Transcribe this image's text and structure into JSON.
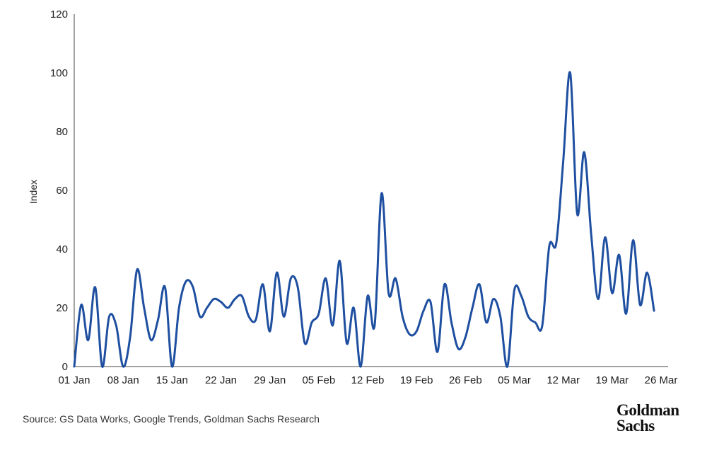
{
  "chart_data": {
    "type": "line",
    "title": "",
    "xlabel": "",
    "ylabel": "Index",
    "ylim": [
      0,
      120
    ],
    "yticks": [
      0,
      20,
      40,
      60,
      80,
      100,
      120
    ],
    "xticks": [
      "01 Jan",
      "08 Jan",
      "15 Jan",
      "22 Jan",
      "29 Jan",
      "05 Feb",
      "12 Feb",
      "19 Feb",
      "26 Feb",
      "05 Mar",
      "12 Mar",
      "19 Mar",
      "26 Mar"
    ],
    "line_color": "#1f4fa0",
    "series": [
      {
        "name": "",
        "points": [
          [
            "01 Jan",
            0
          ],
          [
            "02 Jan",
            21
          ],
          [
            "03 Jan",
            9
          ],
          [
            "04 Jan",
            27
          ],
          [
            "05 Jan",
            0
          ],
          [
            "06 Jan",
            17
          ],
          [
            "07 Jan",
            14
          ],
          [
            "08 Jan",
            0
          ],
          [
            "09 Jan",
            10
          ],
          [
            "10 Jan",
            33
          ],
          [
            "11 Jan",
            20
          ],
          [
            "12 Jan",
            9
          ],
          [
            "13 Jan",
            16
          ],
          [
            "14 Jan",
            27
          ],
          [
            "15 Jan",
            0
          ],
          [
            "16 Jan",
            20
          ],
          [
            "17 Jan",
            29
          ],
          [
            "18 Jan",
            27
          ],
          [
            "19 Jan",
            17
          ],
          [
            "20 Jan",
            20
          ],
          [
            "21 Jan",
            23
          ],
          [
            "22 Jan",
            22
          ],
          [
            "23 Jan",
            20
          ],
          [
            "24 Jan",
            23
          ],
          [
            "25 Jan",
            24
          ],
          [
            "26 Jan",
            17
          ],
          [
            "27 Jan",
            16
          ],
          [
            "28 Jan",
            28
          ],
          [
            "29 Jan",
            12
          ],
          [
            "30 Jan",
            32
          ],
          [
            "31 Jan",
            17
          ],
          [
            "01 Feb",
            30
          ],
          [
            "02 Feb",
            27
          ],
          [
            "03 Feb",
            8
          ],
          [
            "04 Feb",
            15
          ],
          [
            "05 Feb",
            18
          ],
          [
            "06 Feb",
            30
          ],
          [
            "07 Feb",
            14
          ],
          [
            "08 Feb",
            36
          ],
          [
            "09 Feb",
            8
          ],
          [
            "10 Feb",
            20
          ],
          [
            "11 Feb",
            0
          ],
          [
            "12 Feb",
            24
          ],
          [
            "13 Feb",
            14
          ],
          [
            "14 Feb",
            59
          ],
          [
            "15 Feb",
            25
          ],
          [
            "16 Feb",
            30
          ],
          [
            "17 Feb",
            17
          ],
          [
            "18 Feb",
            11
          ],
          [
            "19 Feb",
            12
          ],
          [
            "20 Feb",
            19
          ],
          [
            "21 Feb",
            22
          ],
          [
            "22 Feb",
            5
          ],
          [
            "23 Feb",
            28
          ],
          [
            "24 Feb",
            15
          ],
          [
            "25 Feb",
            6
          ],
          [
            "26 Feb",
            10
          ],
          [
            "27 Feb",
            20
          ],
          [
            "28 Feb",
            28
          ],
          [
            "29 Feb",
            15
          ],
          [
            "01 Mar",
            23
          ],
          [
            "02 Mar",
            17
          ],
          [
            "03 Mar",
            0
          ],
          [
            "04 Mar",
            26
          ],
          [
            "05 Mar",
            24
          ],
          [
            "06 Mar",
            17
          ],
          [
            "07 Mar",
            15
          ],
          [
            "08 Mar",
            14
          ],
          [
            "09 Mar",
            41
          ],
          [
            "10 Mar",
            42
          ],
          [
            "11 Mar",
            70
          ],
          [
            "12 Mar",
            100
          ],
          [
            "13 Mar",
            52
          ],
          [
            "14 Mar",
            73
          ],
          [
            "15 Mar",
            45
          ],
          [
            "16 Mar",
            23
          ],
          [
            "17 Mar",
            44
          ],
          [
            "18 Mar",
            25
          ],
          [
            "19 Mar",
            38
          ],
          [
            "20 Mar",
            18
          ],
          [
            "21 Mar",
            43
          ],
          [
            "22 Mar",
            21
          ],
          [
            "23 Mar",
            32
          ],
          [
            "24 Mar",
            19
          ]
        ]
      }
    ]
  },
  "footer": {
    "source": "Source: GS Data Works, Google Trends, Goldman Sachs Research",
    "logo_line1": "Goldman",
    "logo_line2": "Sachs"
  }
}
